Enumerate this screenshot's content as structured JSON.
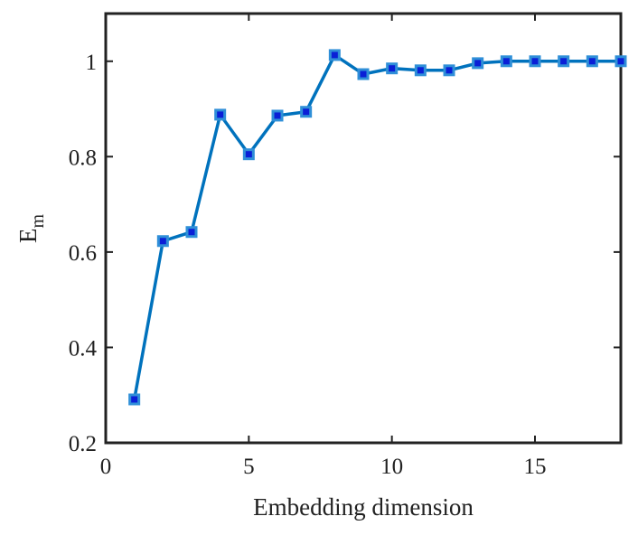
{
  "chart_data": {
    "type": "line",
    "xlabel": "Embedding dimension",
    "ylabel": "E",
    "ylabel_subscript": "m",
    "x": [
      1,
      2,
      3,
      4,
      5,
      6,
      7,
      8,
      9,
      10,
      11,
      12,
      13,
      14,
      15,
      16,
      17,
      18
    ],
    "series": [
      {
        "color": "#0072bd",
        "marker_face_color": "#0a1fd6",
        "marker_edge_color": "#2f8fd8",
        "values": [
          0.291,
          0.623,
          0.642,
          0.888,
          0.805,
          0.886,
          0.894,
          1.013,
          0.973,
          0.985,
          0.981,
          0.981,
          0.996,
          1.0,
          1.0,
          1.0,
          1.0,
          1.0
        ]
      }
    ],
    "xlim": [
      0,
      18
    ],
    "xticks": [
      0,
      5,
      10,
      15
    ],
    "ylim": [
      0.2,
      1.1
    ],
    "yticks": [
      0.2,
      0.4,
      0.6,
      0.8,
      1
    ],
    "grid": false
  }
}
